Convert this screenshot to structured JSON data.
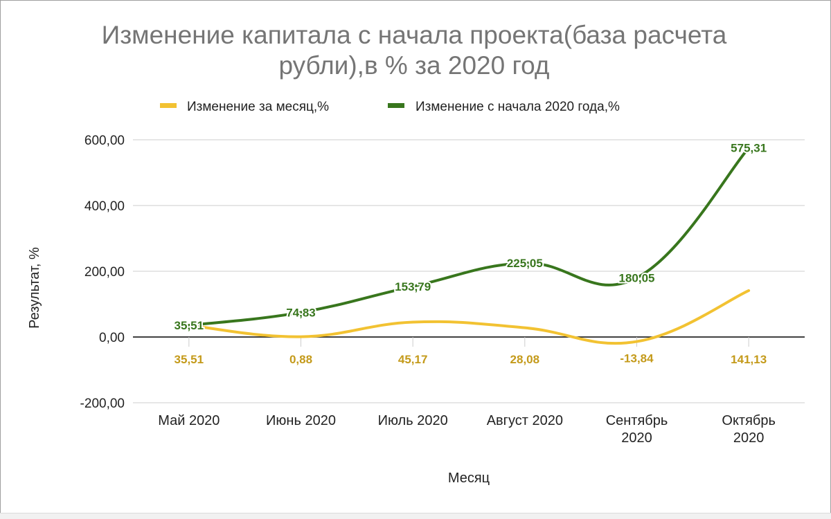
{
  "chart_data": {
    "type": "line",
    "title_lines": [
      "Изменение капитала с начала проекта(база расчета",
      "рубли),в % за 2020 год"
    ],
    "xlabel": "Месяц",
    "ylabel": "Результат, %",
    "categories": [
      [
        "Май 2020"
      ],
      [
        "Июнь 2020"
      ],
      [
        "Июль 2020"
      ],
      [
        "Август 2020"
      ],
      [
        "Сентябрь",
        "2020"
      ],
      [
        "Октябрь",
        "2020"
      ]
    ],
    "ylim": [
      -200,
      600
    ],
    "yticks": [
      -200,
      0,
      200,
      400,
      600
    ],
    "ytick_labels": [
      "-200,00",
      "0,00",
      "200,00",
      "400,00",
      "600,00"
    ],
    "grid": true,
    "legend_position": "top",
    "curve": "smooth",
    "series": [
      {
        "name": "Изменение за месяц,%",
        "color": "#f2c232",
        "label_color": "#c49a1a",
        "label_position": "below",
        "values": [
          35.51,
          0.88,
          45.17,
          28.08,
          -13.84,
          141.13
        ],
        "value_labels": [
          "35,51",
          "0,88",
          "45,17",
          "28,08",
          "-13,84",
          "141,13"
        ]
      },
      {
        "name": "Изменение с начала 2020 года,%",
        "color": "#38761d",
        "label_color": "#38761d",
        "label_position": "on",
        "values": [
          35.51,
          74.83,
          153.79,
          225.05,
          180.05,
          575.31
        ],
        "value_labels": [
          "35,51",
          "74,83",
          "153,79",
          "225,05",
          "180,05",
          "575,31"
        ]
      }
    ]
  }
}
